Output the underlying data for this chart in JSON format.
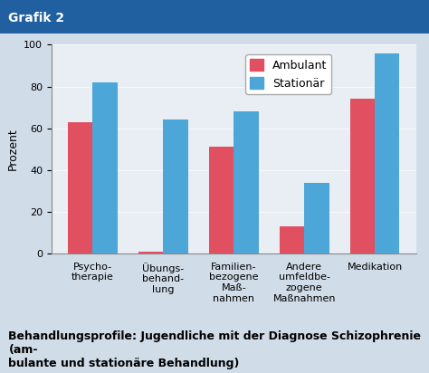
{
  "title": "Grafik 2",
  "ylabel": "Prozent",
  "categories": [
    "Psycho-\ntherapie",
    "Übungs-\nbehand-\nlung",
    "Familien-\nbezogene\nMaß-\nnahmen",
    "Andere\numfeldbe-\nzogene\nMaßnahmen",
    "Medikation"
  ],
  "ambulant": [
    63,
    1,
    51,
    13,
    74
  ],
  "stationar": [
    82,
    64,
    68,
    34,
    96
  ],
  "ambulant_color": "#e05060",
  "stationar_color": "#4da6d8",
  "bar_width": 0.35,
  "ylim": [
    0,
    100
  ],
  "yticks": [
    0,
    20,
    40,
    60,
    80,
    100
  ],
  "legend_labels": [
    "Ambulant",
    "Stationär"
  ],
  "background_color": "#d0dce8",
  "plot_bg_color": "#e8eef4",
  "title_bg_color": "#2060a0",
  "title_text_color": "#ffffff",
  "caption": "Behandlungsprofile: Jugendliche mit der Diagnose Schizophrenie (am-\nbulante und stationäre Behandlung)",
  "caption_fontsize": 9,
  "title_fontsize": 10,
  "ylabel_fontsize": 9,
  "tick_fontsize": 8,
  "legend_fontsize": 9
}
